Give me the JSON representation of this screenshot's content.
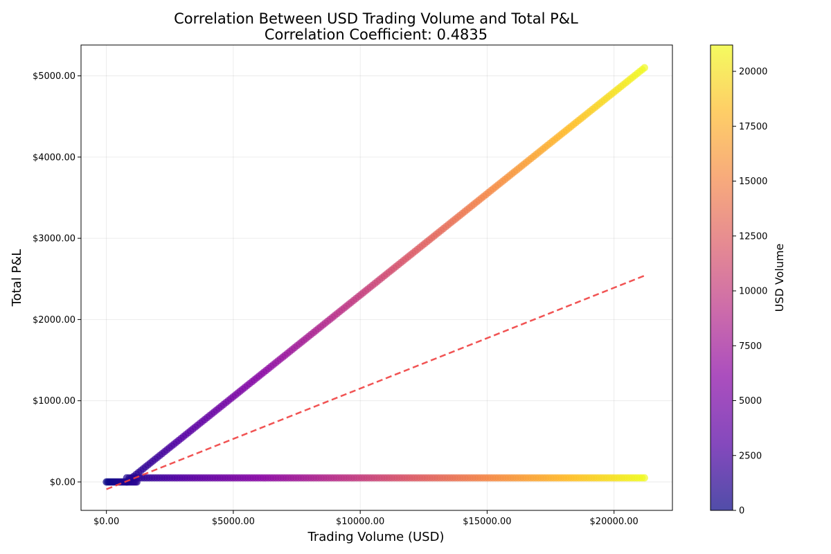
{
  "chart_data": {
    "type": "scatter",
    "title": "Correlation Between USD Trading Volume and Total P&L",
    "subtitle": "Correlation Coefficient: 0.4835",
    "xlabel": "Trading Volume (USD)",
    "ylabel": "Total P&L",
    "xlim": [
      -1000,
      22300
    ],
    "ylim": [
      -350,
      5380
    ],
    "x_ticks": [
      {
        "value": 0,
        "label": "$0.00"
      },
      {
        "value": 5000,
        "label": "$5000.00"
      },
      {
        "value": 10000,
        "label": "$10000.00"
      },
      {
        "value": 15000,
        "label": "$15000.00"
      },
      {
        "value": 20000,
        "label": "$20000.00"
      }
    ],
    "y_ticks": [
      {
        "value": 0,
        "label": "$0.00"
      },
      {
        "value": 1000,
        "label": "$1000.00"
      },
      {
        "value": 2000,
        "label": "$2000.00"
      },
      {
        "value": 3000,
        "label": "$3000.00"
      },
      {
        "value": 4000,
        "label": "$4000.00"
      },
      {
        "value": 5000,
        "label": "$5000.00"
      }
    ],
    "grid": true,
    "colormap": "plasma",
    "colorbar": {
      "label": "USD Volume",
      "range": [
        0,
        21200
      ],
      "ticks": [
        {
          "value": 0,
          "label": "0"
        },
        {
          "value": 2500,
          "label": "2500"
        },
        {
          "value": 5000,
          "label": "5000"
        },
        {
          "value": 7500,
          "label": "7500"
        },
        {
          "value": 10000,
          "label": "10000"
        },
        {
          "value": 12500,
          "label": "12500"
        },
        {
          "value": 15000,
          "label": "15000"
        },
        {
          "value": 17500,
          "label": "17500"
        },
        {
          "value": 20000,
          "label": "20000"
        }
      ]
    },
    "point_groups": [
      {
        "description": "near-zero cluster",
        "x_start": 0,
        "x_end": 1200,
        "count": 22,
        "y_start": 0,
        "y_end": 0
      },
      {
        "description": "flat band",
        "x_start": 800,
        "x_end": 21200,
        "count": 206,
        "y_start": 50,
        "y_end": 50
      },
      {
        "description": "upper diagonal",
        "x_start": 800,
        "x_end": 21200,
        "count": 220,
        "y_start": 0,
        "y_end": 5100
      }
    ],
    "trend_line": {
      "x": [
        0,
        21200
      ],
      "y": [
        -90,
        2540
      ],
      "color": "#f04040",
      "style": "dashed"
    }
  }
}
